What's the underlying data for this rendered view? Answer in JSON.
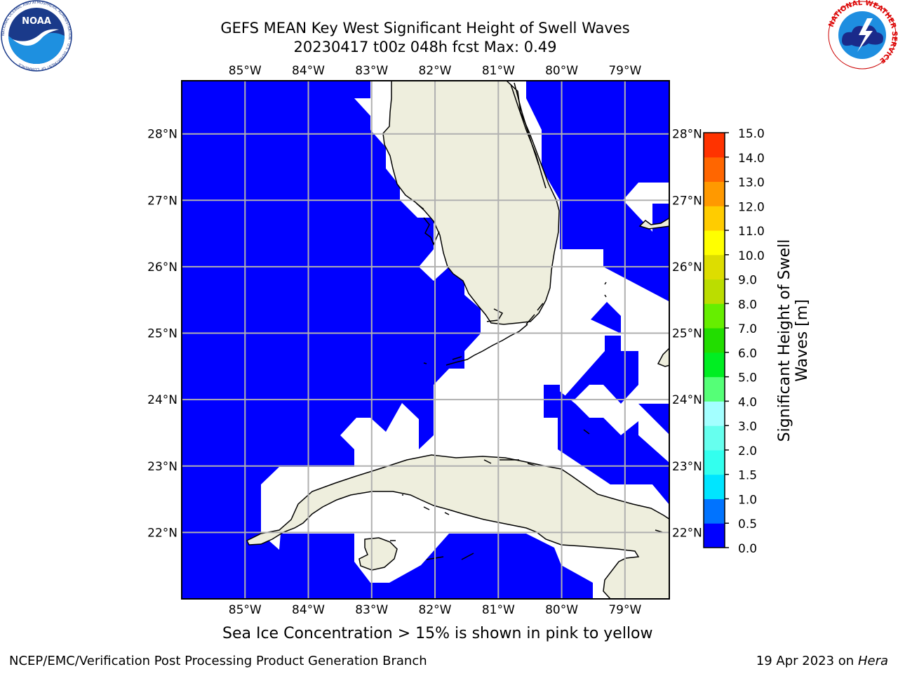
{
  "header": {
    "title_line1": "GEFS MEAN Key West Significant Height of Swell Waves",
    "title_line2": "20230417 t00z 048h fcst   Max: 0.49"
  },
  "logos": {
    "left": {
      "name": "NOAA",
      "text": "NOAA",
      "ring_text": "NATIONAL OCEANIC AND ATMOSPHERIC ADMINISTRATION · U.S. DEPARTMENT OF COMMERCE"
    },
    "right": {
      "name": "National Weather Service",
      "ring_text": "NATIONAL WEATHER SERVICE"
    }
  },
  "map": {
    "lon_labels": [
      "85°W",
      "84°W",
      "83°W",
      "82°W",
      "81°W",
      "80°W",
      "79°W"
    ],
    "lat_labels": [
      "28°N",
      "27°N",
      "26°N",
      "25°N",
      "24°N",
      "23°N",
      "22°N"
    ],
    "lon_range": [
      -86.0,
      -78.3
    ],
    "lat_range": [
      21.0,
      28.8
    ],
    "colors": {
      "ocean": "#0000ff",
      "land": "#eeeedd",
      "nodata": "#ffffff",
      "grid": "#b0b0b0"
    }
  },
  "colorbar": {
    "ticks": [
      "0.0",
      "0.5",
      "1.0",
      "1.5",
      "2.0",
      "3.0",
      "4.0",
      "5.0",
      "6.0",
      "7.0",
      "8.0",
      "9.0",
      "10.0",
      "11.0",
      "12.0",
      "13.0",
      "14.0",
      "15.0"
    ],
    "colors": [
      "#0000ff",
      "#0073ff",
      "#00e5ff",
      "#33ffee",
      "#66ffee",
      "#a3ffff",
      "#55ff77",
      "#00ee22",
      "#22dd00",
      "#66ee00",
      "#bbdd00",
      "#dddd00",
      "#ffff00",
      "#ffcc00",
      "#ff9900",
      "#ff6600",
      "#ff3300",
      "#ff0000"
    ],
    "label_line1": "Significant Height of Swell",
    "label_line2": "Waves [m]"
  },
  "caption": "Sea Ice Concentration > 15% is shown in pink to yellow",
  "footer": {
    "left": "NCEP/EMC/Verification Post Processing Product Generation Branch",
    "date": "19 Apr 2023 on ",
    "machine": "Hera"
  }
}
